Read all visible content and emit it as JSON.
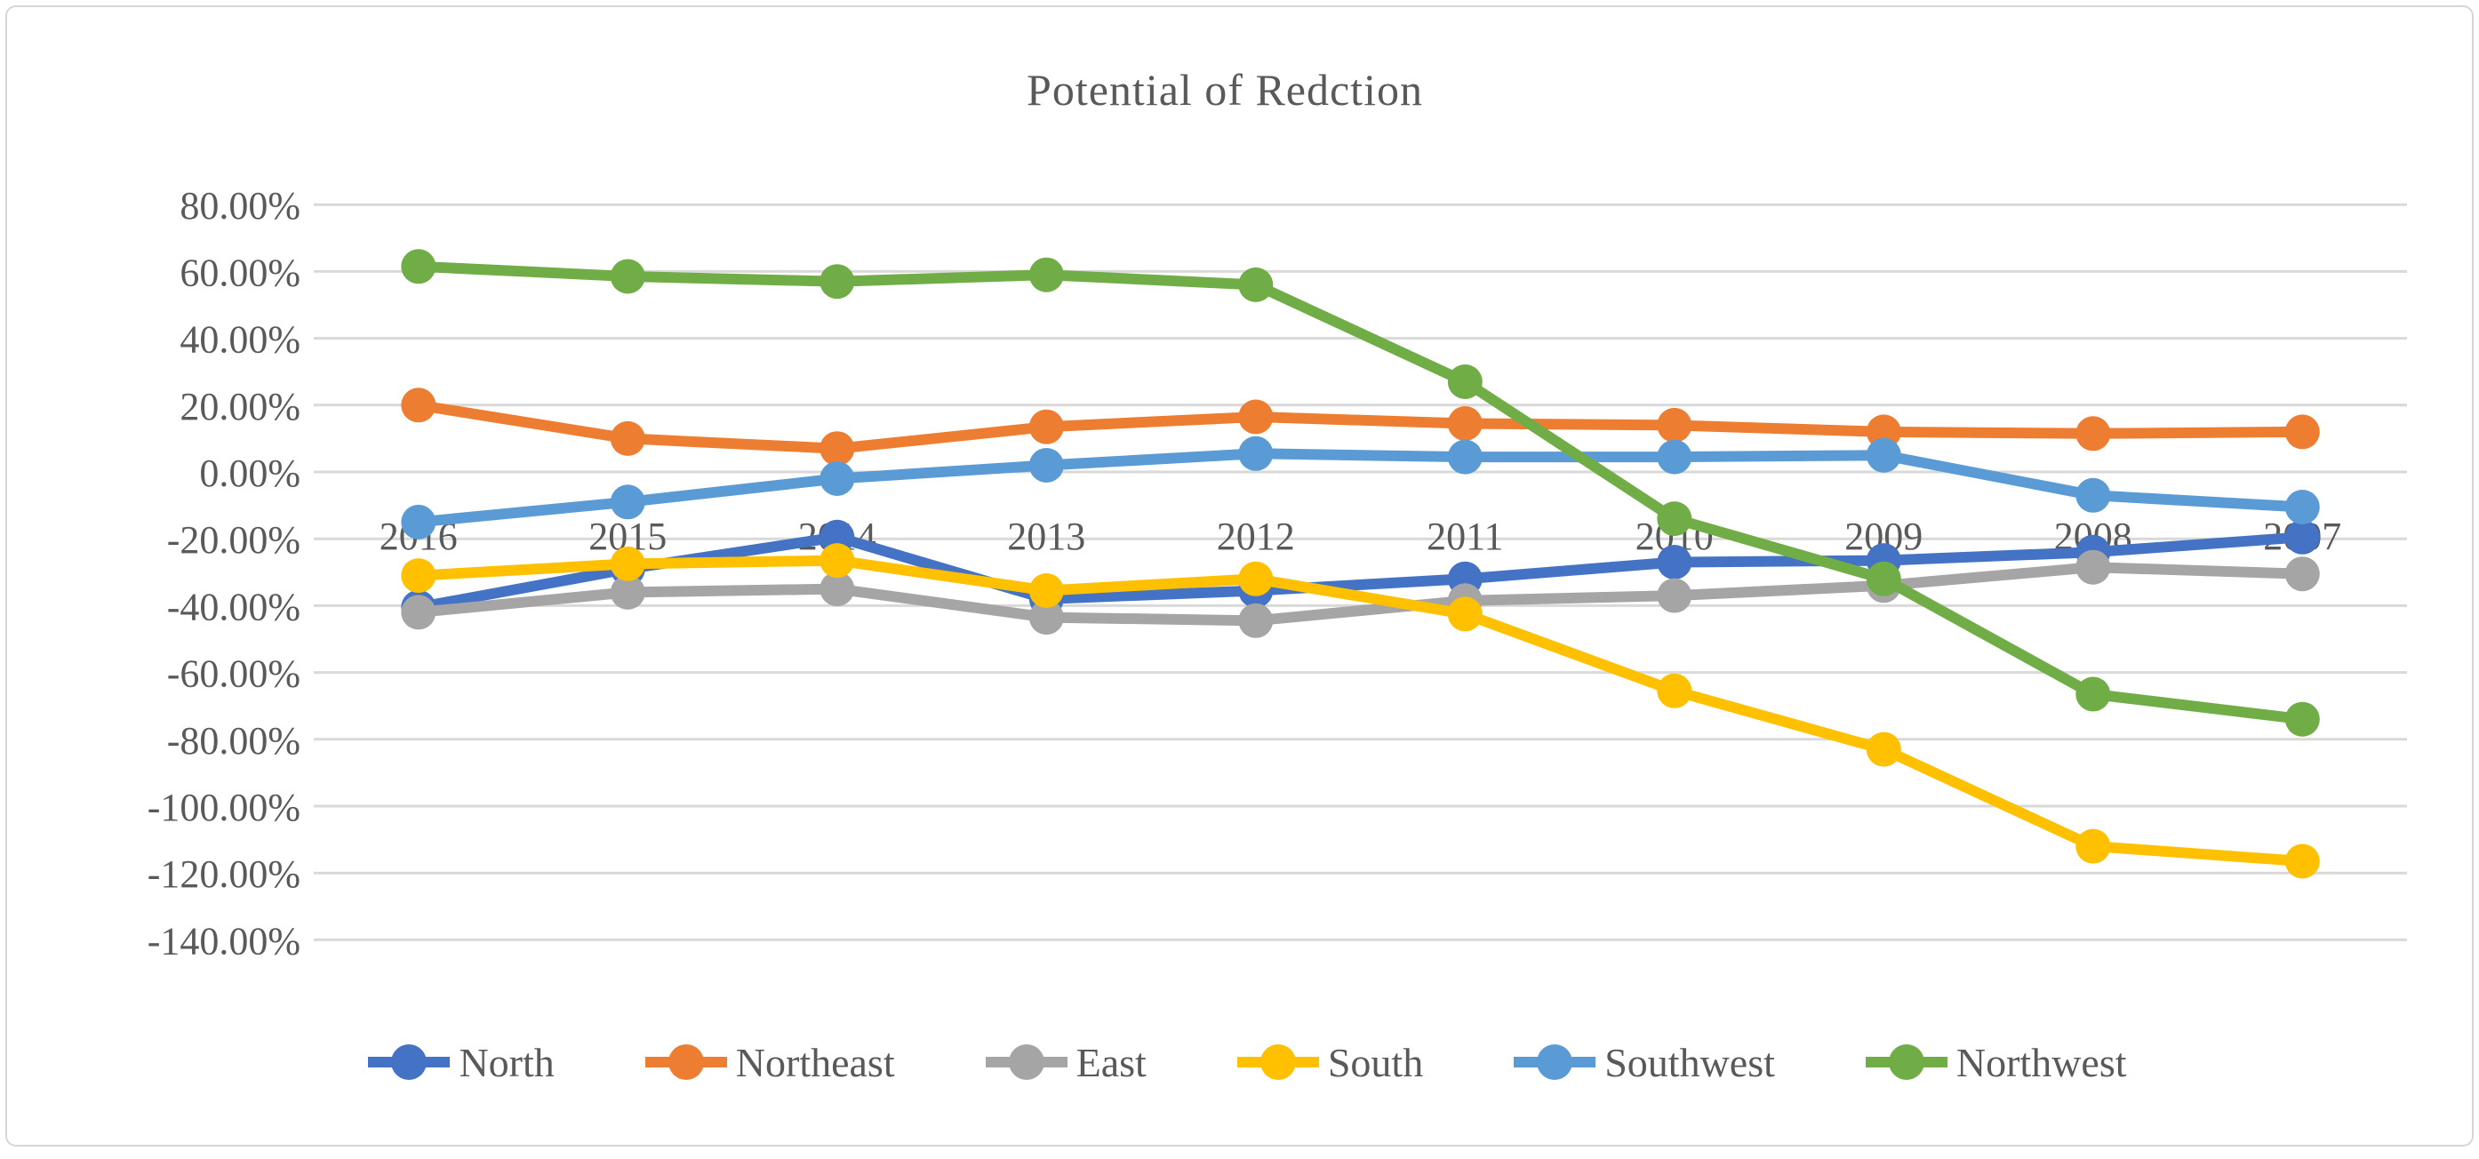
{
  "chart": {
    "title": "Potential of Redction"
  },
  "chart_data": {
    "type": "line",
    "title": "Potential of Redction",
    "categories": [
      "2016",
      "2015",
      "2014",
      "2013",
      "2012",
      "2011",
      "2010",
      "2009",
      "2008",
      "2007"
    ],
    "series": [
      {
        "name": "North",
        "color": "#4472C4",
        "values": [
          -40.5,
          -29.0,
          -19.5,
          -38.0,
          -35.5,
          -32.0,
          -27.0,
          -26.5,
          -24.0,
          -19.5
        ]
      },
      {
        "name": "Northeast",
        "color": "#ED7D31",
        "values": [
          20.0,
          10.0,
          7.0,
          13.5,
          16.5,
          14.5,
          14.0,
          12.0,
          11.5,
          12.0
        ]
      },
      {
        "name": "East",
        "color": "#A5A5A5",
        "values": [
          -42.0,
          -36.0,
          -35.0,
          -43.5,
          -44.5,
          -38.5,
          -37.0,
          -34.0,
          -28.5,
          -30.5
        ]
      },
      {
        "name": "South",
        "color": "#FFC000",
        "values": [
          -31.0,
          -27.5,
          -26.5,
          -35.5,
          -32.0,
          -42.5,
          -65.5,
          -83.0,
          -112.0,
          -116.5
        ]
      },
      {
        "name": "Southwest",
        "color": "#5B9BD5",
        "values": [
          -15.0,
          -9.0,
          -2.0,
          2.0,
          5.5,
          4.5,
          4.5,
          5.0,
          -7.0,
          -10.5
        ]
      },
      {
        "name": "Northwest",
        "color": "#70AD47",
        "values": [
          61.5,
          58.5,
          57.0,
          59.0,
          56.0,
          27.0,
          -14.0,
          -32.0,
          -66.5,
          -74.0
        ]
      }
    ],
    "y_axis": {
      "tick_labels": [
        "80.00%",
        "60.00%",
        "40.00%",
        "20.00%",
        "0.00%",
        "-20.00%",
        "-40.00%",
        "-60.00%",
        "-80.00%",
        "-100.00%",
        "-120.00%",
        "-140.00%"
      ],
      "tick_values": [
        80,
        60,
        40,
        20,
        0,
        -20,
        -40,
        -60,
        -80,
        -100,
        -120,
        -140
      ]
    },
    "ylim": [
      -140,
      80
    ],
    "y_tick_step": 20,
    "grid": true,
    "legend_position": "bottom",
    "value_format": "percent",
    "colors": {
      "grid": "#D9D9D9",
      "text": "#595959",
      "frame_border": "#D6D6D6"
    }
  }
}
